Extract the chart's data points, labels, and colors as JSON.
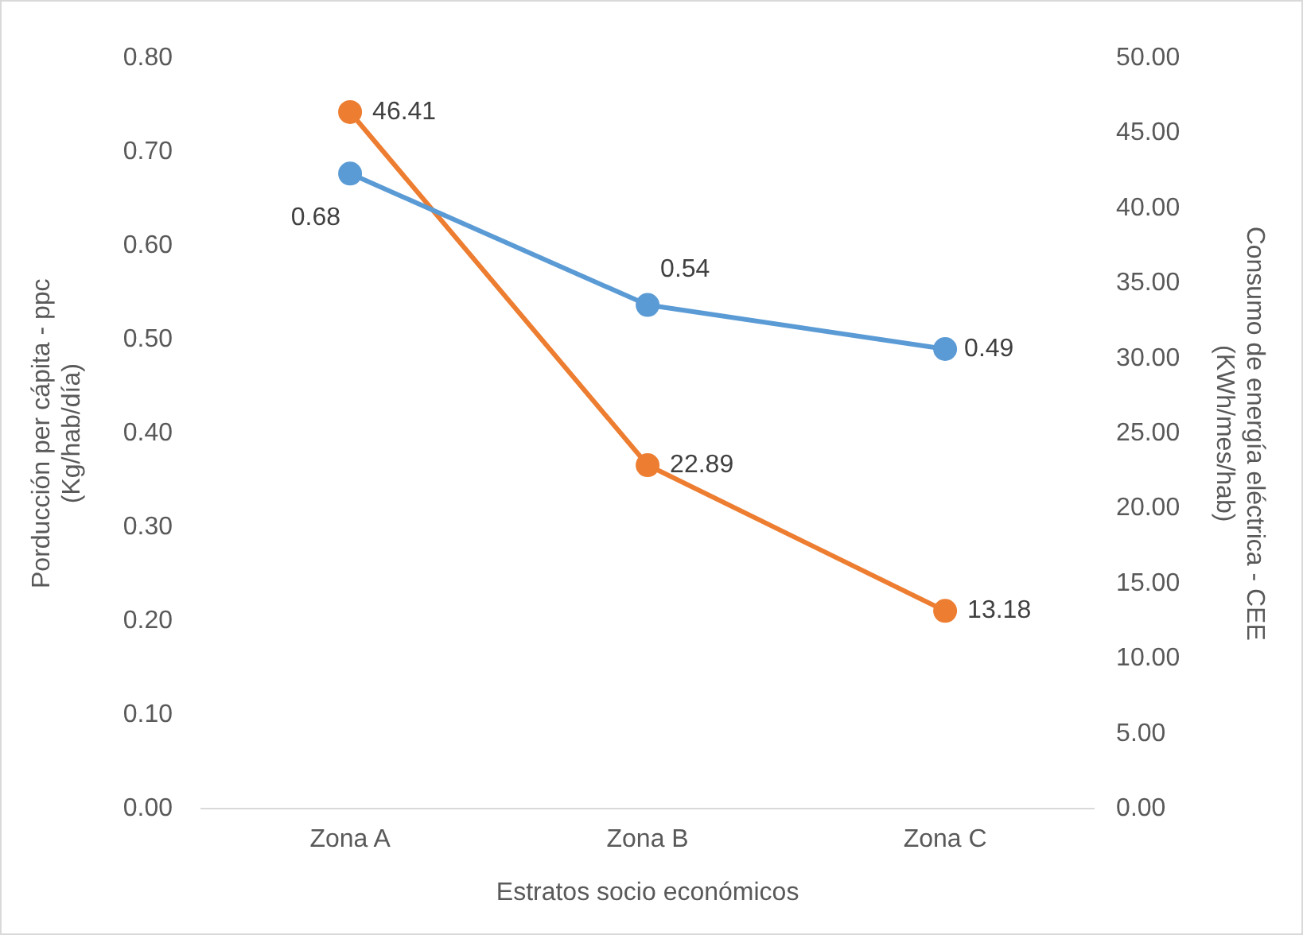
{
  "chart_data": {
    "type": "line",
    "xlabel": "Estratos socio económicos",
    "ylabel": "Porducción per cápita - ppc\n(Kg/hab/día)",
    "y2label": "Consumo de energía eléctrica - CEE\n(KWh/mes/hab)",
    "categories": [
      "Zona A",
      "Zona B",
      "Zona C"
    ],
    "series": [
      {
        "color": "#5b9bd5",
        "values": [
          0.677,
          0.537,
          0.49
        ],
        "value_labels": [
          "0.68",
          "0.54",
          "0.49"
        ]
      },
      {
        "color": "#ed7d31",
        "values": [
          46.41,
          22.89,
          13.18
        ],
        "axis": "y2",
        "value_labels": [
          "46.41",
          "22.89",
          "13.18"
        ]
      }
    ],
    "ylim": [
      0,
      0.8
    ],
    "yticks": [
      {
        "value": 0,
        "label": "0.00"
      },
      {
        "value": 0.1,
        "label": "0.10"
      },
      {
        "value": 0.2,
        "label": "0.20"
      },
      {
        "value": 0.3,
        "label": "0.30"
      },
      {
        "value": 0.4,
        "label": "0.40"
      },
      {
        "value": 0.5,
        "label": "0.50"
      },
      {
        "value": 0.6,
        "label": "0.60"
      },
      {
        "value": 0.7,
        "label": "0.70"
      },
      {
        "value": 0.8,
        "label": "0.80"
      }
    ],
    "y2lim": [
      0,
      50
    ],
    "y2ticks": [
      {
        "value": 0,
        "label": "0.00"
      },
      {
        "value": 5,
        "label": "5.00"
      },
      {
        "value": 10,
        "label": "10.00"
      },
      {
        "value": 15,
        "label": "15.00"
      },
      {
        "value": 20,
        "label": "20.00"
      },
      {
        "value": 25,
        "label": "25.00"
      },
      {
        "value": 30,
        "label": "30.00"
      },
      {
        "value": 35,
        "label": "35.00"
      },
      {
        "value": 40,
        "label": "40.00"
      },
      {
        "value": 45,
        "label": "45.00"
      },
      {
        "value": 50,
        "label": "50.00"
      }
    ],
    "grid": false,
    "legend": false,
    "marker": "circle",
    "line_style": "solid"
  }
}
